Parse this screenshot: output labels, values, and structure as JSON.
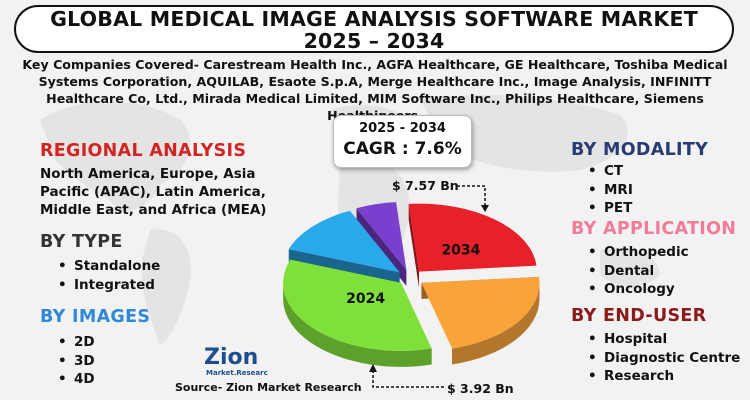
{
  "title": {
    "line1": "GLOBAL MEDICAL IMAGE ANALYSIS SOFTWARE MARKET",
    "line2": "2025 – 2034"
  },
  "companies_text": "Key Companies Covered- Carestream Health Inc., AGFA Healthcare, GE Healthcare, Toshiba Medical Systems Corporation, AQUILAB, Esaote S.p.A, Merge Healthcare Inc., Image Analysis, INFINITT Healthcare Co, Ltd., Mirada Medical Limited, MIM Software Inc., Philips Healthcare, Siemens Healthineers.",
  "regional": {
    "heading": "REGIONAL ANALYSIS",
    "text": "North America, Europe, Asia Pacific (APAC), Latin America, Middle East, and Africa (MEA)"
  },
  "by_type": {
    "heading": "BY TYPE",
    "items": [
      "Standalone",
      "Integrated"
    ]
  },
  "by_images": {
    "heading": "BY IMAGES",
    "items": [
      "2D",
      "3D",
      "4D"
    ]
  },
  "by_modality": {
    "heading": "BY MODALITY",
    "items": [
      "CT",
      "MRI",
      "PET"
    ]
  },
  "by_application": {
    "heading": "BY APPLICATION",
    "items": [
      "Orthopedic",
      "Dental",
      "Oncology"
    ]
  },
  "by_end_user": {
    "heading": "BY END-USER",
    "items": [
      "Hospital",
      "Diagnostic Centre",
      "Research"
    ]
  },
  "cagr": {
    "years": "2025 - 2034",
    "label": "CAGR : 7.6%"
  },
  "source": "Source- Zion Market Research",
  "logo": {
    "name": "Zion",
    "sub": "Market.Research"
  },
  "colors": {
    "red_heading": "#d32424",
    "blue_heading": "#2f89d6",
    "navy_heading": "#283b73",
    "pink_heading": "#f07c99",
    "maroon_heading": "#8c1a1a"
  },
  "chart_data": {
    "type": "pie",
    "style": "3d-exploded",
    "slices": [
      {
        "label": "2034",
        "color": "#e8202a"
      },
      {
        "label": "",
        "color": "#f9a43a"
      },
      {
        "label": "2024",
        "color": "#7fe03a"
      },
      {
        "label": "",
        "color": "#2aa8ec"
      },
      {
        "label": "",
        "color": "#7b3fcf"
      }
    ],
    "annotations": [
      {
        "text": "$ 7.57 Bn",
        "target": "2034"
      },
      {
        "text": "$ 3.92 Bn",
        "target": "2024"
      }
    ]
  }
}
